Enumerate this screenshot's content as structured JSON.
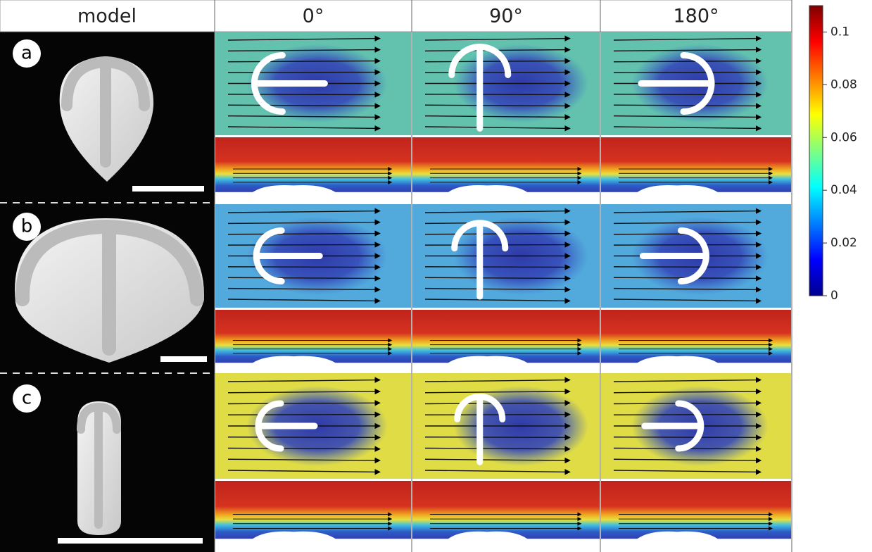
{
  "header": {
    "columns": [
      "model",
      "0°",
      "90°",
      "180°"
    ]
  },
  "rows": [
    {
      "label": "a"
    },
    {
      "label": "b"
    },
    {
      "label": "c"
    }
  ],
  "colorbar": {
    "lim": [
      0,
      0.11
    ],
    "ticks": [
      0,
      0.02,
      0.04,
      0.06,
      0.08,
      0.1
    ]
  }
}
